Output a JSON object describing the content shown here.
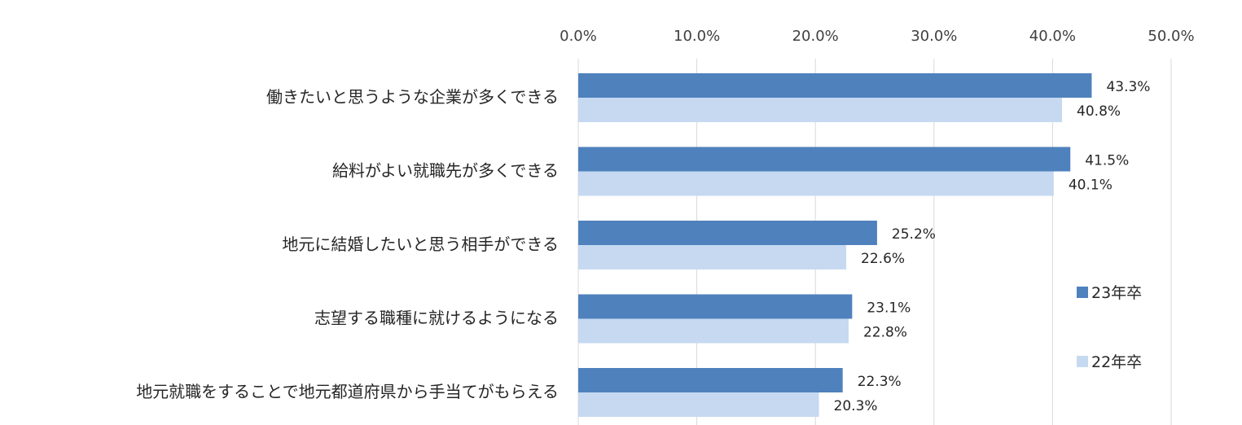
{
  "chart_data": {
    "type": "bar",
    "orientation": "horizontal",
    "categories": [
      "働きたいと思うような企業が多くできる",
      "給料がよい就職先が多くできる",
      "地元に結婚したいと思う相手ができる",
      "志望する職種に就けるようになる",
      "地元就職をすることで地元都道府県から手当てがもらえる"
    ],
    "series": [
      {
        "name": "23年卒",
        "values": [
          43.3,
          41.5,
          25.2,
          23.1,
          22.3
        ],
        "labels": [
          "43.3%",
          "41.5%",
          "25.2%",
          "23.1%",
          "22.3%"
        ],
        "color": "#4f81bd"
      },
      {
        "name": "22年卒",
        "values": [
          40.8,
          40.1,
          22.6,
          22.8,
          20.3
        ],
        "labels": [
          "40.8%",
          "40.1%",
          "22.6%",
          "22.8%",
          "20.3%"
        ],
        "color": "#c6d9f1"
      }
    ],
    "x_ticks": [
      "0.0%",
      "10.0%",
      "20.0%",
      "30.0%",
      "40.0%",
      "50.0%"
    ],
    "xlim": [
      0,
      50
    ],
    "grid": true,
    "axis_position": "top",
    "legend_position": "right"
  }
}
